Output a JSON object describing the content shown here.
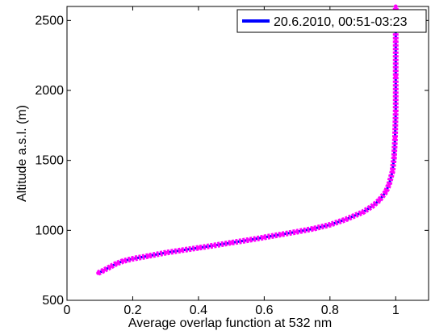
{
  "chart_data": {
    "type": "line",
    "title": "",
    "xlabel": "Average overlap function at 532 nm",
    "ylabel": "Altitude a.s.l. (m)",
    "xlim": [
      0,
      1.1
    ],
    "ylim": [
      500,
      2600
    ],
    "xticks": [
      "0",
      "0.2",
      "0.4",
      "0.6",
      "0.8",
      "1"
    ],
    "yticks": [
      "500",
      "1000",
      "1500",
      "2000",
      "2500"
    ],
    "grid": false,
    "legend_position": "top-right",
    "series": [
      {
        "name": "20.6.2010, 00:51-03:23",
        "line_color": "#0000ff",
        "marker_color": "#ff00ff",
        "points": [
          {
            "x": 0.095,
            "y": 695
          },
          {
            "x": 0.11,
            "y": 712
          },
          {
            "x": 0.13,
            "y": 737
          },
          {
            "x": 0.15,
            "y": 762
          },
          {
            "x": 0.17,
            "y": 780
          },
          {
            "x": 0.2,
            "y": 797
          },
          {
            "x": 0.25,
            "y": 818
          },
          {
            "x": 0.3,
            "y": 840
          },
          {
            "x": 0.35,
            "y": 858
          },
          {
            "x": 0.4,
            "y": 875
          },
          {
            "x": 0.45,
            "y": 893
          },
          {
            "x": 0.5,
            "y": 912
          },
          {
            "x": 0.55,
            "y": 930
          },
          {
            "x": 0.6,
            "y": 950
          },
          {
            "x": 0.65,
            "y": 970
          },
          {
            "x": 0.7,
            "y": 990
          },
          {
            "x": 0.75,
            "y": 1012
          },
          {
            "x": 0.8,
            "y": 1040
          },
          {
            "x": 0.85,
            "y": 1080
          },
          {
            "x": 0.9,
            "y": 1130
          },
          {
            "x": 0.93,
            "y": 1175
          },
          {
            "x": 0.95,
            "y": 1215
          },
          {
            "x": 0.97,
            "y": 1275
          },
          {
            "x": 0.98,
            "y": 1330
          },
          {
            "x": 0.99,
            "y": 1420
          },
          {
            "x": 0.995,
            "y": 1520
          },
          {
            "x": 0.998,
            "y": 1660
          },
          {
            "x": 1.0,
            "y": 1850
          },
          {
            "x": 1.0,
            "y": 2100
          },
          {
            "x": 1.0,
            "y": 2350
          },
          {
            "x": 1.0,
            "y": 2600
          }
        ]
      }
    ]
  }
}
